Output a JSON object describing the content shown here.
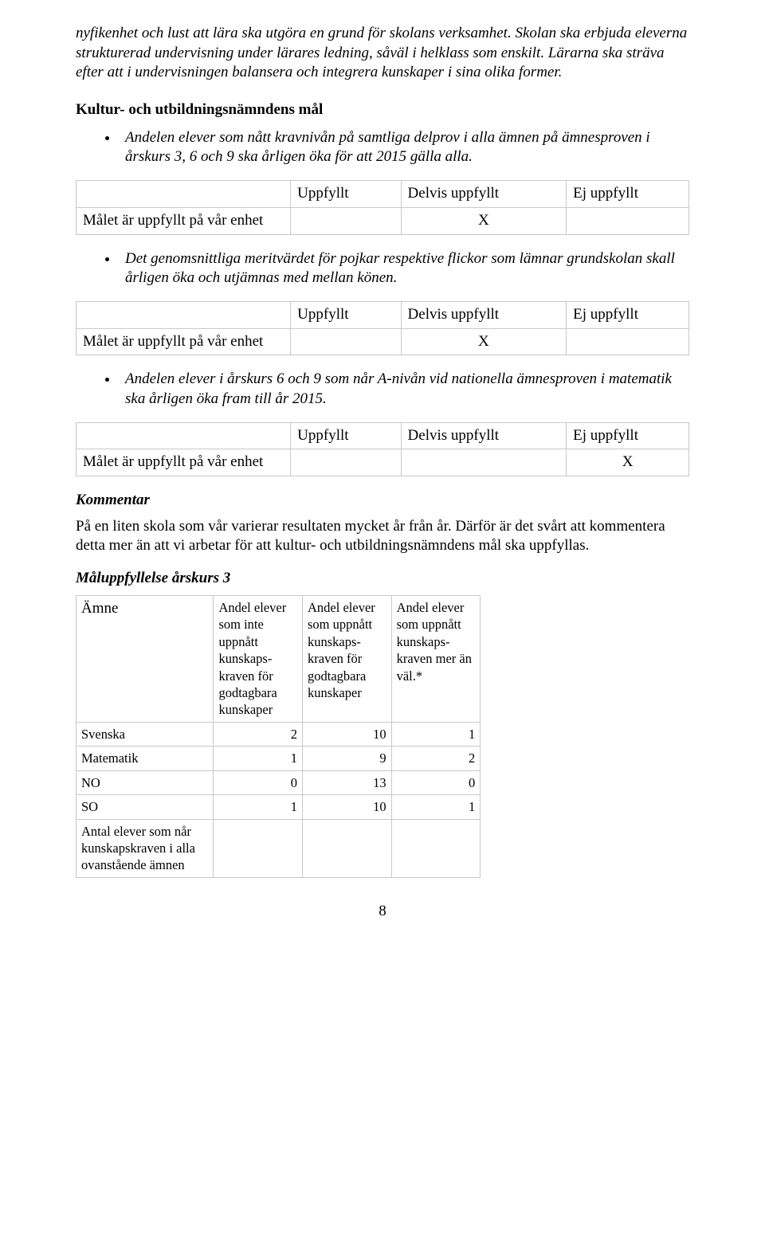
{
  "intro": {
    "p1": "nyfikenhet och lust att lära ska utgöra en grund för skolans verksamhet. Skolan ska erbjuda eleverna strukturerad undervisning under lärares ledning, såväl i helklass som enskilt. Lärarna ska sträva efter att i undervisningen balansera och integrera kunskaper i sina olika former."
  },
  "heading1": "Kultur- och utbildningsnämndens mål",
  "bullets": {
    "b1": "Andelen elever som nått kravnivån på samtliga delprov i alla ämnen på ämnesproven i årskurs 3, 6 och 9 ska årligen öka för att 2015 gälla alla.",
    "b2": "Det genomsnittliga meritvärdet för pojkar respektive flickor som lämnar grundskolan skall årligen öka och utjämnas med mellan könen.",
    "b3": "Andelen elever i årskurs 6 och 9 som når A-nivån vid nationella ämnesproven i matematik ska årligen öka fram till år 2015."
  },
  "goalHeaders": {
    "col1": "Uppfyllt",
    "col2": "Delvis uppfyllt",
    "col3": "Ej uppfyllt",
    "rowLabel": "Målet är uppfyllt på vår enhet"
  },
  "goalTables": {
    "t1": {
      "mark_col": 2,
      "mark": "X"
    },
    "t2": {
      "mark_col": 2,
      "mark": "X"
    },
    "t3": {
      "mark_col": 3,
      "mark": "X"
    }
  },
  "kommentar": {
    "heading": "Kommentar",
    "body": "På en liten skola som vår varierar resultaten mycket år från år. Därför är det svårt att kommentera detta mer än att vi arbetar för att kultur- och utbildningsnämndens mål ska uppfyllas."
  },
  "resultsHeading": "Måluppfyllelse årskurs 3",
  "resultsTable": {
    "head": {
      "c0": "Ämne",
      "c1": "Andel elever som inte uppnått kunskaps-kraven för godtagbara kunskaper",
      "c2": "Andel elever som uppnått kunskaps-kraven för godtagbara kunskaper",
      "c3": "Andel elever som uppnått kunskaps-kraven mer än väl.*"
    },
    "rows": [
      {
        "label": "Svenska",
        "v1": "2",
        "v2": "10",
        "v3": "1"
      },
      {
        "label": "Matematik",
        "v1": "1",
        "v2": "9",
        "v3": "2"
      },
      {
        "label": "NO",
        "v1": "0",
        "v2": "13",
        "v3": "0"
      },
      {
        "label": "SO",
        "v1": "1",
        "v2": "10",
        "v3": "1"
      }
    ],
    "footerLabel": "Antal elever som når kunskapskraven i alla ovanstående ämnen"
  },
  "pageNumber": "8"
}
